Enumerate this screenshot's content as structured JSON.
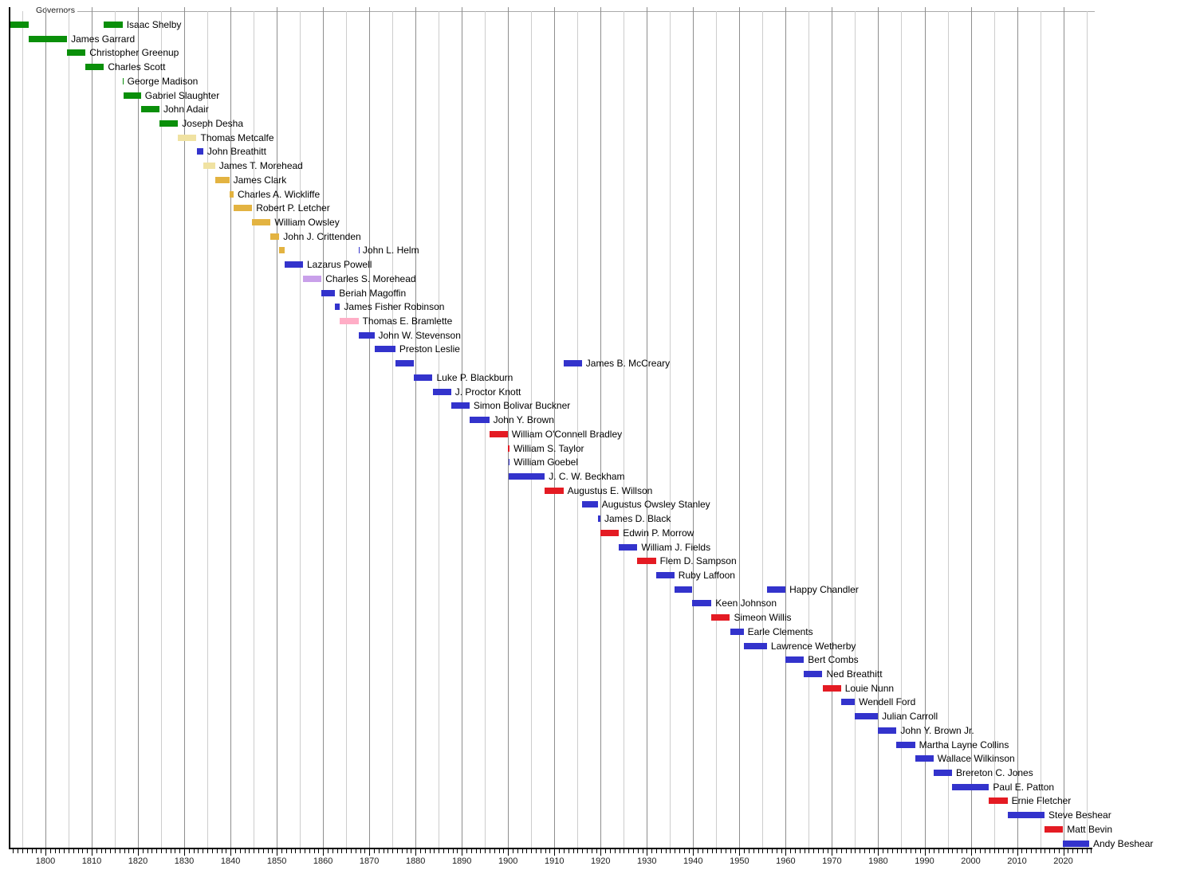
{
  "chart_data": {
    "type": "bar",
    "subtype": "gantt-timeline",
    "title": "Governors",
    "x_axis": {
      "start": 1792.2,
      "end": 2026.8,
      "tick_labels": [
        "1800",
        "1810",
        "1820",
        "1830",
        "1840",
        "1850",
        "1860",
        "1870",
        "1880",
        "1890",
        "1900",
        "1910",
        "1920",
        "1930",
        "1940",
        "1950",
        "1960",
        "1970",
        "1980",
        "1990",
        "2000",
        "2010",
        "2020"
      ],
      "minor_tick_step_years": 1,
      "gridline_step_years": 5,
      "grid_on": true
    },
    "colors": {
      "green": "#0a8f0a",
      "palegold": "#f0e2a2",
      "gold": "#e3b341",
      "blue": "#3333cc",
      "red": "#e41b23",
      "plum": "#c9a0ea",
      "pink": "#ffadc6"
    },
    "governors": [
      {
        "name": "Isaac Shelby",
        "terms": [
          {
            "s": 1792.42,
            "e": 1796.42,
            "c": "green"
          },
          {
            "s": 1812.65,
            "e": 1816.68,
            "c": "green"
          }
        ]
      },
      {
        "name": "James Garrard",
        "terms": [
          {
            "s": 1796.42,
            "e": 1804.67,
            "c": "green"
          }
        ]
      },
      {
        "name": "Christopher Greenup",
        "terms": [
          {
            "s": 1804.67,
            "e": 1808.67,
            "c": "green"
          }
        ]
      },
      {
        "name": "Charles Scott",
        "terms": [
          {
            "s": 1808.67,
            "e": 1812.65,
            "c": "green"
          }
        ]
      },
      {
        "name": "George Madison",
        "terms": [
          {
            "s": 1816.68,
            "e": 1816.82,
            "c": "green"
          }
        ]
      },
      {
        "name": "Gabriel Slaughter",
        "terms": [
          {
            "s": 1816.82,
            "e": 1820.65,
            "c": "green"
          }
        ]
      },
      {
        "name": "John Adair",
        "terms": [
          {
            "s": 1820.65,
            "e": 1824.65,
            "c": "green"
          }
        ]
      },
      {
        "name": "Joseph Desha",
        "terms": [
          {
            "s": 1824.65,
            "e": 1828.67,
            "c": "green"
          }
        ]
      },
      {
        "name": "Thomas Metcalfe",
        "terms": [
          {
            "s": 1828.67,
            "e": 1832.67,
            "c": "palegold"
          }
        ]
      },
      {
        "name": "John Breathitt",
        "terms": [
          {
            "s": 1832.67,
            "e": 1834.12,
            "c": "blue"
          }
        ]
      },
      {
        "name": "James T. Morehead",
        "terms": [
          {
            "s": 1834.12,
            "e": 1836.67,
            "c": "palegold"
          }
        ]
      },
      {
        "name": "James Clark",
        "terms": [
          {
            "s": 1836.67,
            "e": 1839.75,
            "c": "gold"
          }
        ]
      },
      {
        "name": "Charles A. Wickliffe",
        "terms": [
          {
            "s": 1839.75,
            "e": 1840.67,
            "c": "gold"
          }
        ]
      },
      {
        "name": "Robert P. Letcher",
        "terms": [
          {
            "s": 1840.67,
            "e": 1844.67,
            "c": "gold"
          }
        ]
      },
      {
        "name": "William Owsley",
        "terms": [
          {
            "s": 1844.67,
            "e": 1848.67,
            "c": "gold"
          }
        ]
      },
      {
        "name": "John J. Crittenden",
        "terms": [
          {
            "s": 1848.67,
            "e": 1850.56,
            "c": "gold"
          }
        ]
      },
      {
        "name": "John L. Helm",
        "terms": [
          {
            "s": 1850.56,
            "e": 1851.67,
            "c": "gold"
          },
          {
            "s": 1867.67,
            "e": 1867.71,
            "c": "blue"
          }
        ]
      },
      {
        "name": "Lazarus Powell",
        "terms": [
          {
            "s": 1851.67,
            "e": 1855.67,
            "c": "blue"
          }
        ]
      },
      {
        "name": "Charles S. Morehead",
        "terms": [
          {
            "s": 1855.67,
            "e": 1859.67,
            "c": "plum"
          }
        ]
      },
      {
        "name": "Beriah Magoffin",
        "terms": [
          {
            "s": 1859.67,
            "e": 1862.62,
            "c": "blue"
          }
        ]
      },
      {
        "name": "James Fisher Robinson",
        "terms": [
          {
            "s": 1862.62,
            "e": 1863.67,
            "c": "blue"
          }
        ]
      },
      {
        "name": "Thomas E. Bramlette",
        "terms": [
          {
            "s": 1863.67,
            "e": 1867.67,
            "c": "pink"
          }
        ]
      },
      {
        "name": "John W. Stevenson",
        "terms": [
          {
            "s": 1867.71,
            "e": 1871.1,
            "c": "blue"
          }
        ]
      },
      {
        "name": "Preston Leslie",
        "terms": [
          {
            "s": 1871.1,
            "e": 1875.65,
            "c": "blue"
          }
        ]
      },
      {
        "name": "James B. McCreary",
        "terms": [
          {
            "s": 1875.65,
            "e": 1879.65,
            "c": "blue"
          },
          {
            "s": 1911.95,
            "e": 1915.95,
            "c": "blue"
          }
        ]
      },
      {
        "name": "Luke P. Blackburn",
        "terms": [
          {
            "s": 1879.65,
            "e": 1883.67,
            "c": "blue"
          }
        ]
      },
      {
        "name": "J. Proctor Knott",
        "terms": [
          {
            "s": 1883.67,
            "e": 1887.67,
            "c": "blue"
          }
        ]
      },
      {
        "name": "Simon Bolivar Buckner",
        "terms": [
          {
            "s": 1887.67,
            "e": 1891.67,
            "c": "blue"
          }
        ]
      },
      {
        "name": "John Y. Brown",
        "terms": [
          {
            "s": 1891.67,
            "e": 1895.92,
            "c": "blue"
          }
        ]
      },
      {
        "name": "William O'Connell Bradley",
        "terms": [
          {
            "s": 1895.92,
            "e": 1899.92,
            "c": "red"
          }
        ]
      },
      {
        "name": "William S. Taylor",
        "terms": [
          {
            "s": 1899.92,
            "e": 1900.33,
            "c": "red"
          }
        ]
      },
      {
        "name": "William Goebel",
        "terms": [
          {
            "s": 1900.1,
            "e": 1900.35,
            "c": "blue"
          }
        ]
      },
      {
        "name": "J. C. W. Beckham",
        "terms": [
          {
            "s": 1900.1,
            "e": 1907.92,
            "c": "blue"
          }
        ]
      },
      {
        "name": "Augustus E. Willson",
        "terms": [
          {
            "s": 1907.92,
            "e": 1911.95,
            "c": "red"
          }
        ]
      },
      {
        "name": "Augustus Owsley Stanley",
        "terms": [
          {
            "s": 1915.95,
            "e": 1919.37,
            "c": "blue"
          }
        ]
      },
      {
        "name": "James D. Black",
        "terms": [
          {
            "s": 1919.37,
            "e": 1919.95,
            "c": "blue"
          }
        ]
      },
      {
        "name": "Edwin P. Morrow",
        "terms": [
          {
            "s": 1919.95,
            "e": 1923.95,
            "c": "red"
          }
        ]
      },
      {
        "name": "William J. Fields",
        "terms": [
          {
            "s": 1923.95,
            "e": 1927.95,
            "c": "blue"
          }
        ]
      },
      {
        "name": "Flem D. Sampson",
        "terms": [
          {
            "s": 1927.95,
            "e": 1931.95,
            "c": "red"
          }
        ]
      },
      {
        "name": "Ruby Laffoon",
        "terms": [
          {
            "s": 1931.95,
            "e": 1935.95,
            "c": "blue"
          }
        ]
      },
      {
        "name": "Happy Chandler",
        "terms": [
          {
            "s": 1935.95,
            "e": 1939.78,
            "c": "blue"
          },
          {
            "s": 1955.95,
            "e": 1959.95,
            "c": "blue"
          }
        ]
      },
      {
        "name": "Keen Johnson",
        "terms": [
          {
            "s": 1939.78,
            "e": 1943.95,
            "c": "blue"
          }
        ]
      },
      {
        "name": "Simeon Willis",
        "terms": [
          {
            "s": 1943.95,
            "e": 1947.95,
            "c": "red"
          }
        ]
      },
      {
        "name": "Earle Clements",
        "terms": [
          {
            "s": 1947.95,
            "e": 1950.9,
            "c": "blue"
          }
        ]
      },
      {
        "name": "Lawrence Wetherby",
        "terms": [
          {
            "s": 1950.9,
            "e": 1955.95,
            "c": "blue"
          }
        ]
      },
      {
        "name": "Bert Combs",
        "terms": [
          {
            "s": 1959.95,
            "e": 1963.95,
            "c": "blue"
          }
        ]
      },
      {
        "name": "Ned Breathitt",
        "terms": [
          {
            "s": 1963.95,
            "e": 1967.95,
            "c": "blue"
          }
        ]
      },
      {
        "name": "Louie Nunn",
        "terms": [
          {
            "s": 1967.95,
            "e": 1971.95,
            "c": "red"
          }
        ]
      },
      {
        "name": "Wendell Ford",
        "terms": [
          {
            "s": 1971.95,
            "e": 1974.95,
            "c": "blue"
          }
        ]
      },
      {
        "name": "Julian Carroll",
        "terms": [
          {
            "s": 1974.95,
            "e": 1979.95,
            "c": "blue"
          }
        ]
      },
      {
        "name": "John Y. Brown Jr.",
        "terms": [
          {
            "s": 1979.95,
            "e": 1983.95,
            "c": "blue"
          }
        ]
      },
      {
        "name": "Martha Layne Collins",
        "terms": [
          {
            "s": 1983.95,
            "e": 1987.95,
            "c": "blue"
          }
        ]
      },
      {
        "name": "Wallace Wilkinson",
        "terms": [
          {
            "s": 1987.95,
            "e": 1991.95,
            "c": "blue"
          }
        ]
      },
      {
        "name": "Brereton C. Jones",
        "terms": [
          {
            "s": 1991.95,
            "e": 1995.95,
            "c": "blue"
          }
        ]
      },
      {
        "name": "Paul E. Patton",
        "terms": [
          {
            "s": 1995.95,
            "e": 2003.95,
            "c": "blue"
          }
        ]
      },
      {
        "name": "Ernie Fletcher",
        "terms": [
          {
            "s": 2003.95,
            "e": 2007.95,
            "c": "red"
          }
        ]
      },
      {
        "name": "Steve Beshear",
        "terms": [
          {
            "s": 2007.95,
            "e": 2015.95,
            "c": "blue"
          }
        ]
      },
      {
        "name": "Matt Bevin",
        "terms": [
          {
            "s": 2015.95,
            "e": 2019.95,
            "c": "red"
          }
        ]
      },
      {
        "name": "Andy Beshear",
        "terms": [
          {
            "s": 2019.95,
            "e": 2025.6,
            "c": "blue"
          }
        ]
      }
    ]
  }
}
